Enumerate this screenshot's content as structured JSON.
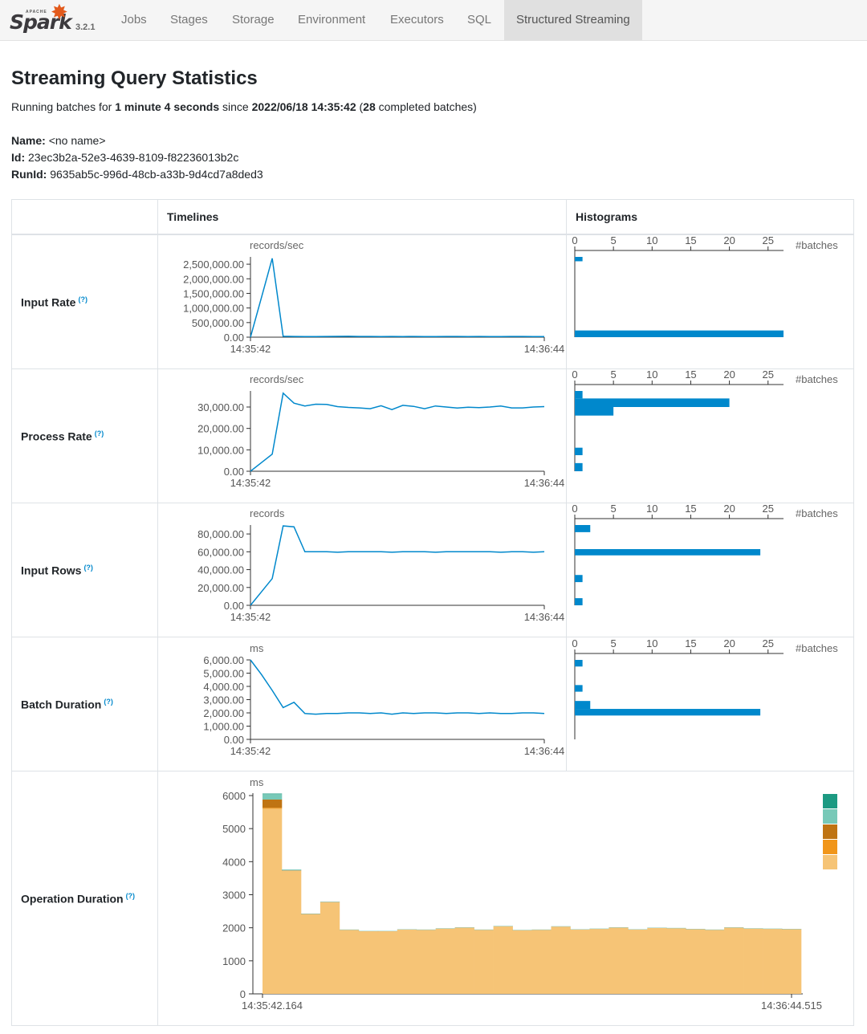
{
  "nav": {
    "brand_apache": "APACHE",
    "brand_name": "Spark",
    "version": "3.2.1",
    "tabs": [
      "Jobs",
      "Stages",
      "Storage",
      "Environment",
      "Executors",
      "SQL",
      "Structured Streaming"
    ],
    "active_tab": "Structured Streaming"
  },
  "page": {
    "title": "Streaming Query Statistics",
    "summary": {
      "prefix": "Running batches for ",
      "duration": "1 minute 4 seconds",
      "since": " since ",
      "start": "2022/06/18 14:35:42",
      "open": " (",
      "completed": "28",
      "suffix": " completed batches)"
    },
    "name_label": "Name:",
    "name_value": "<no name>",
    "id_label": "Id:",
    "id_value": "23ec3b2a-52e3-4639-8109-f82236013b2c",
    "runid_label": "RunId:",
    "runid_value": "9635ab5c-996d-48cb-a33b-9d4cd7a8ded3"
  },
  "table": {
    "col_timelines": "Timelines",
    "col_histograms": "Histograms",
    "help_mark": "(?)",
    "batches_label": "#batches",
    "hist_ticks": [
      "0",
      "5",
      "10",
      "15",
      "20",
      "25"
    ],
    "x_start": "14:35:42",
    "x_end": "14:36:44",
    "rows": [
      {
        "label": "Input Rate",
        "unit": "records/sec",
        "y_ticks": [
          "2,500,000.00",
          "2,000,000.00",
          "1,500,000.00",
          "1,000,000.00",
          "500,000.00",
          "0.00"
        ],
        "y_tick_values": [
          2500000,
          2000000,
          1500000,
          1000000,
          500000,
          0
        ],
        "y_max": 2750000,
        "series": [
          0,
          1350000,
          2700000,
          30000,
          25000,
          22000,
          20000,
          25000,
          28000,
          30000,
          26000,
          24000,
          22000,
          25000,
          23000,
          26000,
          20000,
          22000,
          24000,
          25000,
          23000,
          26000,
          22000,
          21000,
          24000,
          25000,
          23000,
          22000
        ],
        "hist": [
          {
            "from": 2750000,
            "to": 2600000,
            "count": 1
          },
          {
            "from": 230000,
            "to": 0,
            "count": 27
          }
        ]
      },
      {
        "label": "Process Rate",
        "unit": "records/sec",
        "y_ticks": [
          "30,000.00",
          "20,000.00",
          "10,000.00",
          "0.00"
        ],
        "y_tick_values": [
          30000,
          20000,
          10000,
          0
        ],
        "y_max": 37500,
        "series": [
          0,
          4000,
          8000,
          36500,
          31800,
          30500,
          31300,
          31200,
          30200,
          29800,
          29600,
          29200,
          30600,
          28800,
          30800,
          30300,
          29200,
          30500,
          30000,
          29500,
          29900,
          29700,
          30000,
          30500,
          29600,
          29600,
          30000,
          30200
        ],
        "hist": [
          {
            "from": 37500,
            "to": 34000,
            "count": 1
          },
          {
            "from": 34000,
            "to": 30000,
            "count": 20
          },
          {
            "from": 30000,
            "to": 26000,
            "count": 5
          },
          {
            "from": 11000,
            "to": 7500,
            "count": 1
          },
          {
            "from": 3800,
            "to": 0,
            "count": 1
          }
        ]
      },
      {
        "label": "Input Rows",
        "unit": "records",
        "y_ticks": [
          "80,000.00",
          "60,000.00",
          "40,000.00",
          "20,000.00",
          "0.00"
        ],
        "y_tick_values": [
          80000,
          60000,
          40000,
          20000,
          0
        ],
        "y_max": 90000,
        "series": [
          0,
          15000,
          30000,
          89000,
          88000,
          60000,
          60000,
          60000,
          59500,
          60000,
          60000,
          60000,
          60000,
          59500,
          60000,
          60000,
          60000,
          59500,
          60000,
          60000,
          60000,
          60000,
          60000,
          59500,
          60000,
          60000,
          59500,
          60000
        ],
        "hist": [
          {
            "from": 90000,
            "to": 82000,
            "count": 2
          },
          {
            "from": 63000,
            "to": 56000,
            "count": 24
          },
          {
            "from": 34000,
            "to": 26000,
            "count": 1
          },
          {
            "from": 8000,
            "to": 0,
            "count": 1
          }
        ]
      },
      {
        "label": "Batch Duration",
        "unit": "ms",
        "y_ticks": [
          "6,000.00",
          "5,000.00",
          "4,000.00",
          "3,000.00",
          "2,000.00",
          "1,000.00",
          "0.00"
        ],
        "y_tick_values": [
          6000,
          5000,
          4000,
          3000,
          2000,
          1000,
          0
        ],
        "y_max": 6000,
        "series": [
          6000,
          4900,
          3700,
          2400,
          2800,
          1950,
          1900,
          1950,
          1950,
          2000,
          2000,
          1950,
          2000,
          1900,
          2000,
          1950,
          2000,
          2000,
          1950,
          2000,
          2000,
          1950,
          2000,
          1950,
          1950,
          2000,
          2000,
          1950
        ],
        "hist": [
          {
            "from": 6000,
            "to": 5500,
            "count": 1
          },
          {
            "from": 4100,
            "to": 3600,
            "count": 1
          },
          {
            "from": 2900,
            "to": 2300,
            "count": 2
          },
          {
            "from": 2300,
            "to": 1800,
            "count": 24
          }
        ]
      },
      {
        "label": "Operation Duration",
        "unit": "ms",
        "x_start": "14:35:42.164",
        "x_end": "14:36:44.515",
        "y_ticks": [
          "6000",
          "5000",
          "4000",
          "3000",
          "2000",
          "1000",
          "0"
        ],
        "y_tick_values": [
          6000,
          5000,
          4000,
          3000,
          2000,
          1000,
          0
        ],
        "y_max": 6000
      }
    ]
  },
  "chart_data": {
    "type": "bar",
    "stacked": true,
    "ylabel": "ms",
    "ylim": [
      0,
      6000
    ],
    "x_start": "14:35:42.164",
    "x_end": "14:36:44.515",
    "colors": [
      "#f6c476",
      "#f1961a",
      "#bf7413",
      "#78c9b8",
      "#1c9a82"
    ],
    "series": [
      {
        "values": [
          5600,
          3720,
          2410,
          2770,
          1930,
          1890,
          1890,
          1940,
          1930,
          1970,
          2000,
          1930,
          2040,
          1920,
          1930,
          2030,
          1940,
          1960,
          2000,
          1940,
          1990,
          1980,
          1950,
          1930,
          2000,
          1970,
          1960,
          1950
        ]
      },
      {
        "values": [
          30,
          5,
          3,
          3,
          2,
          2,
          2,
          2,
          2,
          2,
          2,
          2,
          2,
          2,
          2,
          2,
          2,
          2,
          2,
          2,
          2,
          2,
          2,
          2,
          2,
          2,
          2,
          2
        ]
      },
      {
        "values": [
          250,
          10,
          5,
          5,
          3,
          3,
          3,
          3,
          3,
          3,
          3,
          3,
          3,
          3,
          3,
          3,
          3,
          3,
          3,
          3,
          3,
          3,
          3,
          3,
          3,
          3,
          3,
          3
        ]
      },
      {
        "values": [
          160,
          20,
          10,
          10,
          8,
          8,
          8,
          8,
          8,
          8,
          8,
          8,
          8,
          8,
          8,
          8,
          8,
          8,
          8,
          8,
          8,
          8,
          8,
          8,
          8,
          8,
          8,
          8
        ]
      },
      {
        "values": [
          20,
          5,
          2,
          2,
          2,
          2,
          2,
          2,
          2,
          2,
          2,
          2,
          2,
          2,
          2,
          2,
          2,
          2,
          2,
          2,
          2,
          2,
          2,
          2,
          2,
          2,
          2,
          2
        ]
      }
    ]
  },
  "colors": {
    "line": "#0088cc",
    "bar": "#0088cc",
    "axis": "#333333",
    "tick_text": "#555555"
  }
}
